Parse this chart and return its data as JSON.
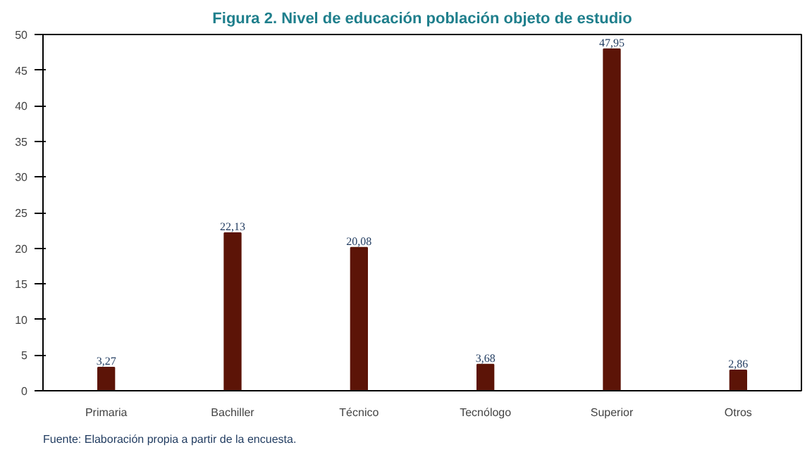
{
  "chart_data": {
    "type": "bar",
    "title": "Figura 2. Nivel de educación población objeto de estudio",
    "categories": [
      "Primaria",
      "Bachiller",
      "Técnico",
      "Tecnólogo",
      "Superior",
      "Otros"
    ],
    "values": [
      3.27,
      22.13,
      20.08,
      3.68,
      47.95,
      2.86
    ],
    "value_labels": [
      "3,27",
      "22,13",
      "20,08",
      "3,68",
      "47,95",
      "2,86"
    ],
    "color": "#5c1407",
    "ylim": [
      0,
      50
    ],
    "yticks": [
      0,
      5,
      10,
      15,
      20,
      25,
      30,
      35,
      40,
      45,
      50
    ],
    "grid": false,
    "annotations": [
      "Fuente: Elaboración propia a partir de la encuesta."
    ]
  }
}
